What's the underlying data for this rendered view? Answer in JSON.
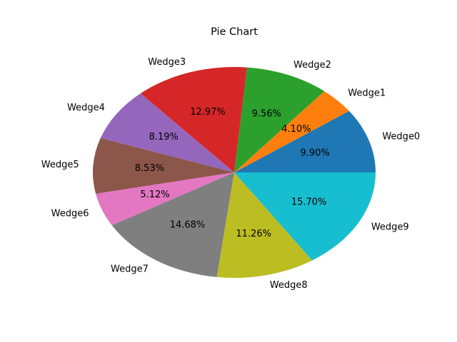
{
  "chart_data": {
    "type": "pie",
    "title": "Pie Chart",
    "start_angle_deg": 0,
    "direction": "counterclockwise",
    "slices": [
      {
        "label": "Wedge0",
        "value": 9.9,
        "pct_label": "9.90%",
        "color": "#1f77b4"
      },
      {
        "label": "Wedge1",
        "value": 4.1,
        "pct_label": "4.10%",
        "color": "#ff7f0e"
      },
      {
        "label": "Wedge2",
        "value": 9.56,
        "pct_label": "9.56%",
        "color": "#2ca02c"
      },
      {
        "label": "Wedge3",
        "value": 12.97,
        "pct_label": "12.97%",
        "color": "#d62728"
      },
      {
        "label": "Wedge4",
        "value": 8.19,
        "pct_label": "8.19%",
        "color": "#9467bd"
      },
      {
        "label": "Wedge5",
        "value": 8.53,
        "pct_label": "8.53%",
        "color": "#8c564b"
      },
      {
        "label": "Wedge6",
        "value": 5.12,
        "pct_label": "5.12%",
        "color": "#e377c2"
      },
      {
        "label": "Wedge7",
        "value": 14.68,
        "pct_label": "14.68%",
        "color": "#7f7f7f"
      },
      {
        "label": "Wedge8",
        "value": 11.26,
        "pct_label": "11.26%",
        "color": "#bcbd22"
      },
      {
        "label": "Wedge9",
        "value": 15.7,
        "pct_label": "15.70%",
        "color": "#17becf"
      }
    ]
  }
}
